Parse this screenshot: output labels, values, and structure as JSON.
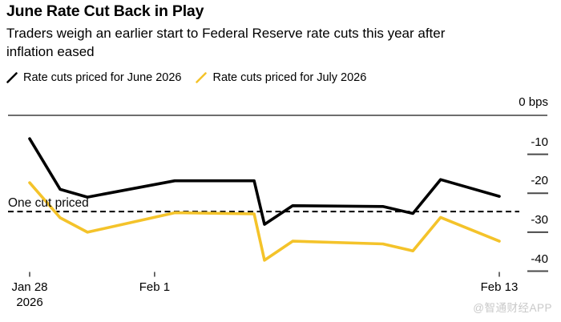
{
  "header": {
    "title": "June Rate Cut Back in Play",
    "subtitle_line1": "Traders weigh an earlier start to Federal Reserve rate cuts this year after",
    "subtitle_line2": "inflation eased"
  },
  "legend": {
    "items": [
      {
        "key": "june",
        "label": "Rate cuts priced for June 2026"
      },
      {
        "key": "july",
        "label": "Rate cuts priced for July 2026"
      }
    ]
  },
  "colors": {
    "june_line": "#000000",
    "july_line": "#f4c32a",
    "axis": "#4a4a4a",
    "zero_line": "#3f3f3f",
    "dashed_line": "#000000",
    "text": "#000000",
    "watermark": "#c9c9c9"
  },
  "chart_data": {
    "type": "line",
    "title": "June Rate Cut Back in Play",
    "subtitle": "Traders weigh an earlier start to Federal Reserve rate cuts this year after inflation eased",
    "unit": "bps",
    "ylabel": "",
    "xlabel": "",
    "ylim": [
      -45,
      0
    ],
    "grid": "off",
    "legend_position": "top",
    "y_ticks": [
      {
        "label": "0 bps",
        "bps": 0
      },
      {
        "label": "-10",
        "bps": -10
      },
      {
        "label": "-20",
        "bps": -20
      },
      {
        "label": "-30",
        "bps": -30
      },
      {
        "label": "-40",
        "bps": -40
      }
    ],
    "x_ticks": [
      {
        "label": "Feb 1",
        "f": 0.266
      },
      {
        "label": "Feb 13",
        "f": 1.0
      }
    ],
    "x_first_tick": {
      "label": "Jan 28",
      "sublabel": "2026",
      "f": 0.0
    },
    "x_range": [
      "Jan 28, 2026",
      "Feb 13, 2026"
    ],
    "annotation": {
      "text": "One cut priced",
      "bps": -24.7,
      "style": "dashed-horizontal-line"
    },
    "series": [
      {
        "key": "june",
        "name": "Rate cuts priced for June 2026",
        "color_key": "june_line",
        "points": [
          [
            0.0,
            -6.0
          ],
          [
            0.065,
            -19.0
          ],
          [
            0.123,
            -21.0
          ],
          [
            0.309,
            -16.8
          ],
          [
            0.478,
            -16.8
          ],
          [
            0.5,
            -28.0
          ],
          [
            0.56,
            -23.2
          ],
          [
            0.752,
            -23.4
          ],
          [
            0.816,
            -25.2
          ],
          [
            0.875,
            -16.5
          ],
          [
            1.0,
            -20.8
          ]
        ]
      },
      {
        "key": "july",
        "name": "Rate cuts priced for July 2026",
        "color_key": "july_line",
        "points": [
          [
            0.0,
            -17.3
          ],
          [
            0.065,
            -26.3
          ],
          [
            0.123,
            -30.0
          ],
          [
            0.309,
            -25.0
          ],
          [
            0.478,
            -25.3
          ],
          [
            0.5,
            -37.2
          ],
          [
            0.56,
            -32.3
          ],
          [
            0.752,
            -33.0
          ],
          [
            0.816,
            -34.8
          ],
          [
            0.875,
            -26.2
          ],
          [
            1.0,
            -32.3
          ]
        ]
      }
    ]
  },
  "footer": {
    "watermark": "@智通财经APP"
  }
}
